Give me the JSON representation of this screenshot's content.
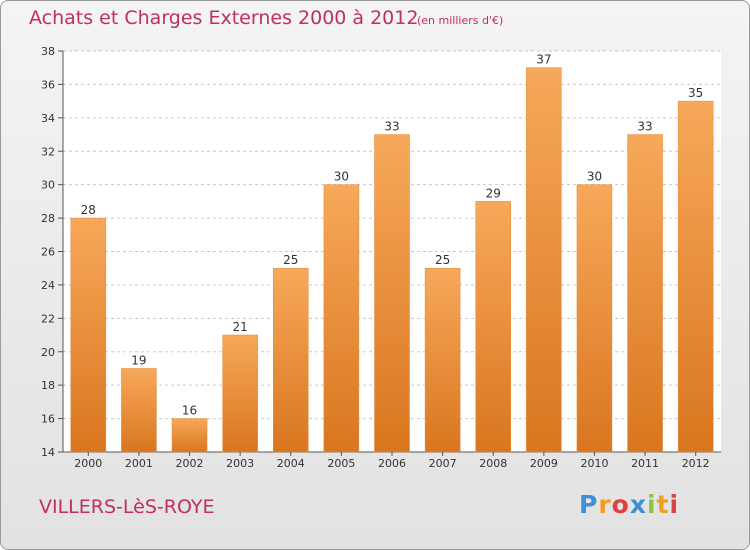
{
  "header": {
    "title": "Achats et Charges Externes 2000 à 2012",
    "subtitle": "(en milliers d'€)"
  },
  "footer": {
    "commune": "VILLERS-LèS-ROYE",
    "logo_text": "Proxiti",
    "logo_letters": [
      {
        "char": "P",
        "color": "#3d8fd6"
      },
      {
        "char": "r",
        "color": "#f0a020"
      },
      {
        "char": "o",
        "color": "#e04040"
      },
      {
        "char": "x",
        "color": "#3d8fd6"
      },
      {
        "char": "i",
        "color": "#8cc63f"
      },
      {
        "char": "t",
        "color": "#f0a020"
      },
      {
        "char": "i",
        "color": "#e04040"
      }
    ]
  },
  "colors": {
    "title": "#c0305a",
    "bar_light": "#f7a85a",
    "bar_dark": "#d9761f",
    "grid": "#c8c8c8"
  },
  "chart_data": {
    "type": "bar",
    "title": "Achats et Charges Externes 2000 à 2012",
    "subtitle": "(en milliers d'€)",
    "categories": [
      "2000",
      "2001",
      "2002",
      "2003",
      "2004",
      "2005",
      "2006",
      "2007",
      "2008",
      "2009",
      "2010",
      "2011",
      "2012"
    ],
    "values": [
      28,
      19,
      16,
      21,
      25,
      30,
      33,
      25,
      29,
      37,
      30,
      33,
      35
    ],
    "ylim": [
      14,
      38
    ],
    "yticks": [
      14,
      16,
      18,
      20,
      22,
      24,
      26,
      28,
      30,
      32,
      34,
      36,
      38
    ],
    "grid": true,
    "data_labels": true,
    "xlabel": "",
    "ylabel": ""
  }
}
